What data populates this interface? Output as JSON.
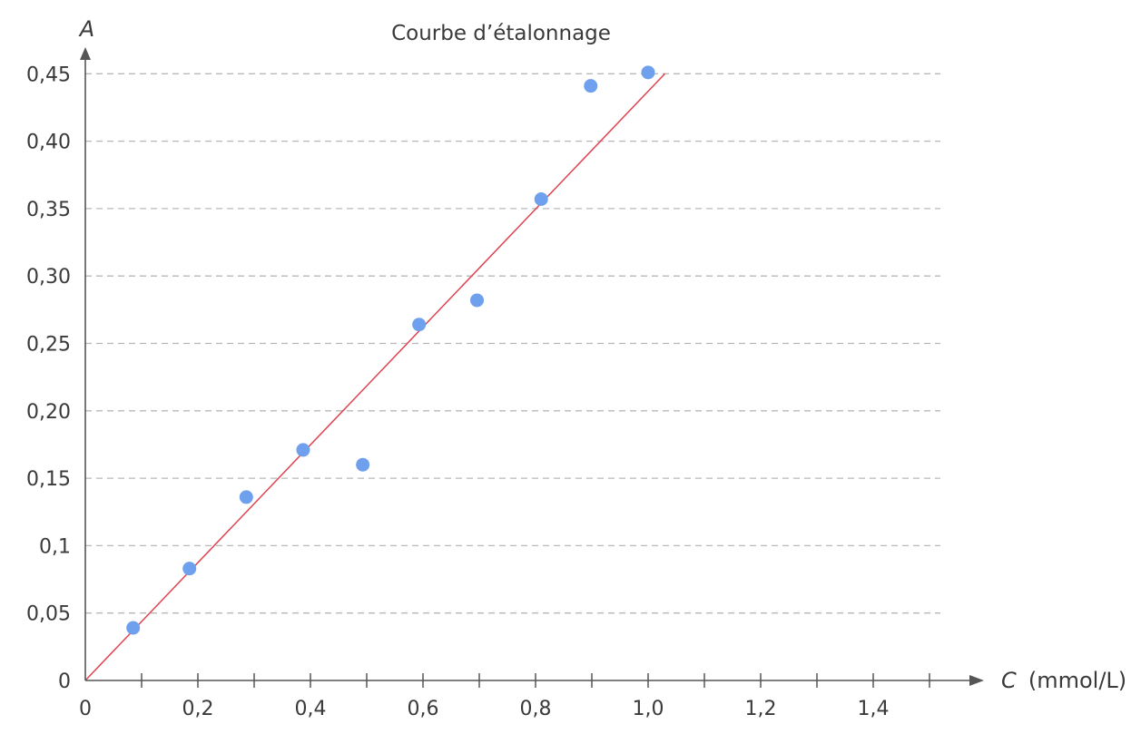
{
  "chart_data": {
    "type": "scatter",
    "title": "Courbe d’étalonnage",
    "xlabel_symbol": "C",
    "xlabel_unit": "(mmol/L)",
    "ylabel": "A",
    "xlim": [
      0,
      1.5
    ],
    "ylim": [
      0,
      0.45
    ],
    "grid": "horizontal dashed",
    "x_ticks": [
      0.1,
      0.2,
      0.3,
      0.4,
      0.5,
      0.6,
      0.7,
      0.8,
      0.9,
      1.0,
      1.1,
      1.2,
      1.3,
      1.4,
      1.5
    ],
    "x_tick_labels": [
      {
        "value": 0,
        "label": "0"
      },
      {
        "value": 0.2,
        "label": "0,2"
      },
      {
        "value": 0.4,
        "label": "0,4"
      },
      {
        "value": 0.6,
        "label": "0,6"
      },
      {
        "value": 0.8,
        "label": "0,8"
      },
      {
        "value": 1.0,
        "label": "1,0"
      },
      {
        "value": 1.2,
        "label": "1,2"
      },
      {
        "value": 1.4,
        "label": "1,4"
      }
    ],
    "y_tick_labels": [
      {
        "value": 0,
        "label": "0"
      },
      {
        "value": 0.05,
        "label": "0,05"
      },
      {
        "value": 0.1,
        "label": "0,1"
      },
      {
        "value": 0.15,
        "label": "0,15"
      },
      {
        "value": 0.2,
        "label": "0,20"
      },
      {
        "value": 0.25,
        "label": "0,25"
      },
      {
        "value": 0.3,
        "label": "0,30"
      },
      {
        "value": 0.35,
        "label": "0,35"
      },
      {
        "value": 0.4,
        "label": "0,40"
      },
      {
        "value": 0.45,
        "label": "0,45"
      }
    ],
    "points": [
      {
        "x": 0.085,
        "y": 0.039
      },
      {
        "x": 0.185,
        "y": 0.083
      },
      {
        "x": 0.286,
        "y": 0.136
      },
      {
        "x": 0.387,
        "y": 0.171
      },
      {
        "x": 0.493,
        "y": 0.16
      },
      {
        "x": 0.593,
        "y": 0.264
      },
      {
        "x": 0.696,
        "y": 0.282
      },
      {
        "x": 0.81,
        "y": 0.357
      },
      {
        "x": 0.898,
        "y": 0.441
      },
      {
        "x": 1.0,
        "y": 0.451
      }
    ],
    "fit_line": {
      "slope": 0.437,
      "intercept": 0,
      "x_end": 1.03
    },
    "colors": {
      "points": "#6fa0ee",
      "fit_line": "#e0434f",
      "grid": "#b8b8b8",
      "axis": "#555555"
    }
  }
}
